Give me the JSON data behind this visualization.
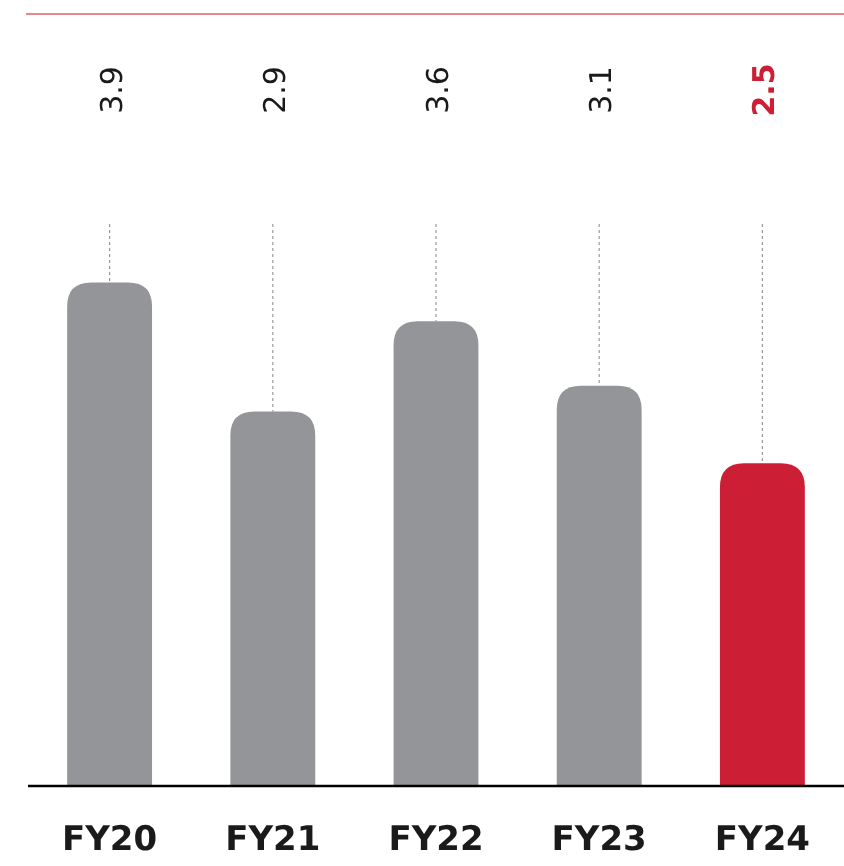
{
  "chart_data": {
    "type": "bar",
    "categories": [
      "FY20",
      "FY21",
      "FY22",
      "FY23",
      "FY24"
    ],
    "values": [
      3.9,
      2.9,
      3.6,
      3.1,
      2.5
    ],
    "color": "#939598",
    "colors": [
      "#939598",
      "#939598",
      "#939598",
      "#939598",
      "#cc1f36"
    ],
    "data_labels": true
  }
}
